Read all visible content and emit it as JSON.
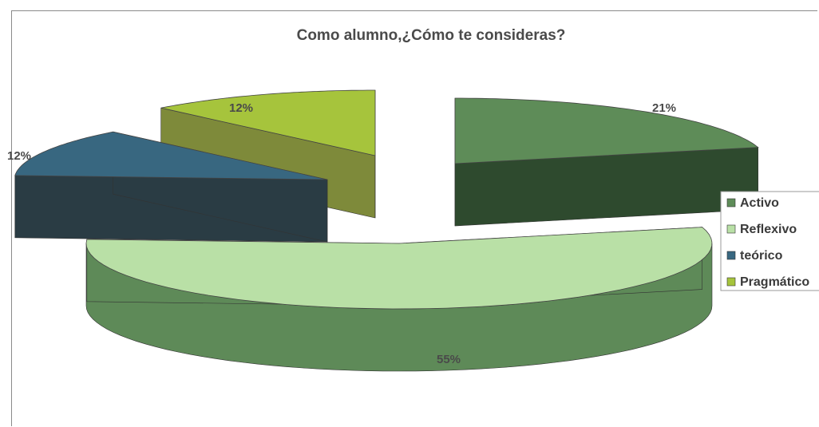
{
  "chart_data": {
    "type": "pie",
    "style": "3d-exploded",
    "title": "Como alumno,¿Cómo te consideras?",
    "categories": [
      "Activo",
      "Reflexivo",
      "teórico",
      "Pragmático"
    ],
    "values": [
      21,
      55,
      12,
      12
    ],
    "data_labels": [
      "21%",
      "55%",
      "12%",
      "12%"
    ],
    "colors": [
      "#5e8c58",
      "#b9e0a6",
      "#386780",
      "#a6c43c"
    ],
    "side_colors": [
      "#2e4a2e",
      "#5e8a58",
      "#2a3c44",
      "#7e8a3a"
    ],
    "legend_position": "right"
  }
}
